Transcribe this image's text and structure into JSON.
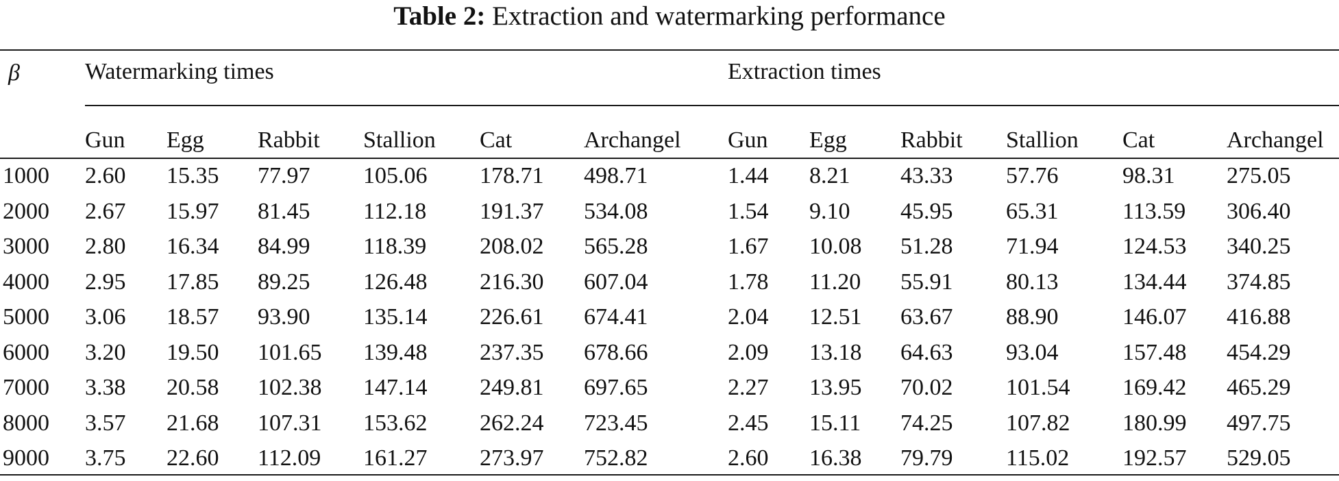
{
  "caption": {
    "label": "Table 2:",
    "text": "Extraction and watermarking performance"
  },
  "table": {
    "beta_header": "β",
    "groups": [
      "Watermarking times",
      "Extraction times"
    ],
    "columns": [
      "Gun",
      "Egg",
      "Rabbit",
      "Stallion",
      "Cat",
      "Archangel",
      "Gun",
      "Egg",
      "Rabbit",
      "Stallion",
      "Cat",
      "Archangel"
    ],
    "rows": [
      [
        "1000",
        "2.60",
        "15.35",
        "77.97",
        "105.06",
        "178.71",
        "498.71",
        "1.44",
        "8.21",
        "43.33",
        "57.76",
        "98.31",
        "275.05"
      ],
      [
        "2000",
        "2.67",
        "15.97",
        "81.45",
        "112.18",
        "191.37",
        "534.08",
        "1.54",
        "9.10",
        "45.95",
        "65.31",
        "113.59",
        "306.40"
      ],
      [
        "3000",
        "2.80",
        "16.34",
        "84.99",
        "118.39",
        "208.02",
        "565.28",
        "1.67",
        "10.08",
        "51.28",
        "71.94",
        "124.53",
        "340.25"
      ],
      [
        "4000",
        "2.95",
        "17.85",
        "89.25",
        "126.48",
        "216.30",
        "607.04",
        "1.78",
        "11.20",
        "55.91",
        "80.13",
        "134.44",
        "374.85"
      ],
      [
        "5000",
        "3.06",
        "18.57",
        "93.90",
        "135.14",
        "226.61",
        "674.41",
        "2.04",
        "12.51",
        "63.67",
        "88.90",
        "146.07",
        "416.88"
      ],
      [
        "6000",
        "3.20",
        "19.50",
        "101.65",
        "139.48",
        "237.35",
        "678.66",
        "2.09",
        "13.18",
        "64.63",
        "93.04",
        "157.48",
        "454.29"
      ],
      [
        "7000",
        "3.38",
        "20.58",
        "102.38",
        "147.14",
        "249.81",
        "697.65",
        "2.27",
        "13.95",
        "70.02",
        "101.54",
        "169.42",
        "465.29"
      ],
      [
        "8000",
        "3.57",
        "21.68",
        "107.31",
        "153.62",
        "262.24",
        "723.45",
        "2.45",
        "15.11",
        "74.25",
        "107.82",
        "180.99",
        "497.75"
      ],
      [
        "9000",
        "3.75",
        "22.60",
        "112.09",
        "161.27",
        "273.97",
        "752.82",
        "2.60",
        "16.38",
        "79.79",
        "115.02",
        "192.57",
        "529.05"
      ]
    ]
  }
}
